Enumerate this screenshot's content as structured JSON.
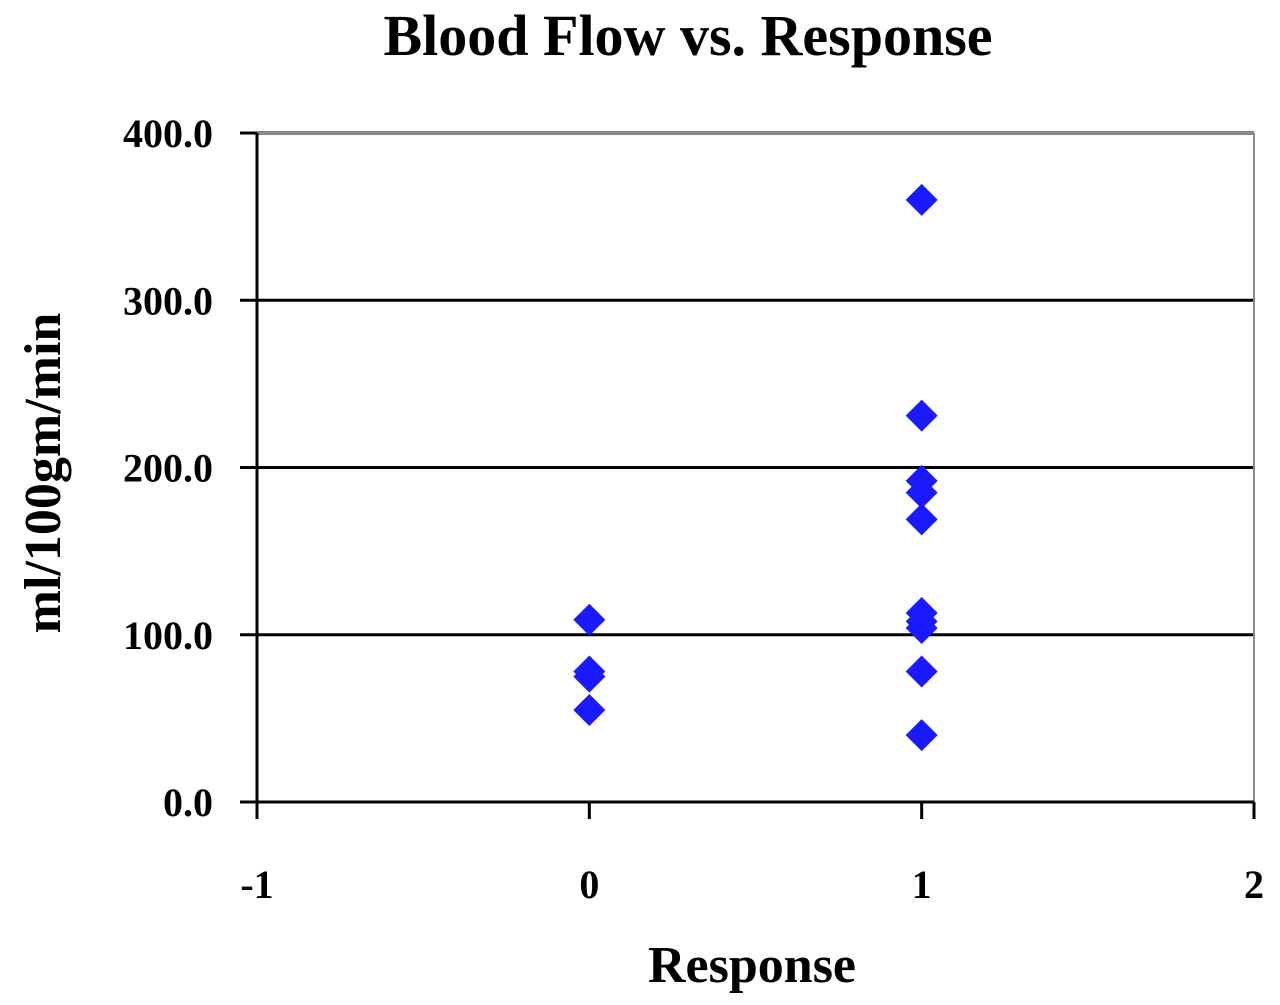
{
  "chart_data": {
    "type": "scatter",
    "title": "Blood Flow vs. Response",
    "xlabel": "Response",
    "ylabel": "ml/100gm/min",
    "xlim": [
      -1,
      2
    ],
    "ylim": [
      0,
      400
    ],
    "x_ticks": [
      "-1",
      "0",
      "1",
      "2"
    ],
    "y_ticks": [
      "0.0",
      "100.0",
      "200.0",
      "300.0",
      "400.0"
    ],
    "grid": "horizontal",
    "legend": "none",
    "marker": "diamond",
    "series_color": "#1a1aff",
    "series": [
      {
        "points": [
          {
            "x": 0,
            "y": 109
          },
          {
            "x": 0,
            "y": 78
          },
          {
            "x": 0,
            "y": 75
          },
          {
            "x": 0,
            "y": 55
          },
          {
            "x": 1,
            "y": 360
          },
          {
            "x": 1,
            "y": 231
          },
          {
            "x": 1,
            "y": 192
          },
          {
            "x": 1,
            "y": 185
          },
          {
            "x": 1,
            "y": 169
          },
          {
            "x": 1,
            "y": 113
          },
          {
            "x": 1,
            "y": 108
          },
          {
            "x": 1,
            "y": 104
          },
          {
            "x": 1,
            "y": 78
          },
          {
            "x": 1,
            "y": 40
          }
        ]
      }
    ]
  }
}
